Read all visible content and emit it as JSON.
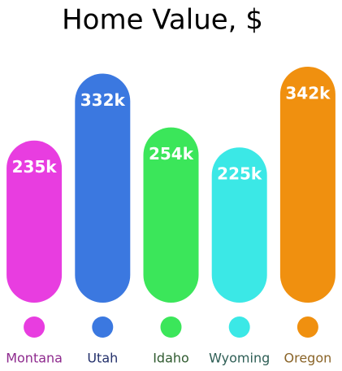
{
  "chart_data": {
    "type": "bar",
    "title": "Home Value, $",
    "categories": [
      "Montana",
      "Utah",
      "Idaho",
      "Wyoming",
      "Oregon"
    ],
    "values": [
      235,
      332,
      254,
      225,
      342
    ],
    "value_labels": [
      "235k",
      "332k",
      "254k",
      "225k",
      "342k"
    ],
    "colors": [
      "#e83de0",
      "#3b78e0",
      "#3be65a",
      "#3be8e6",
      "#f0900f"
    ],
    "label_colors": [
      "#8e2a8e",
      "#23306b",
      "#2f5a2f",
      "#2e5e55",
      "#8a6428"
    ]
  }
}
